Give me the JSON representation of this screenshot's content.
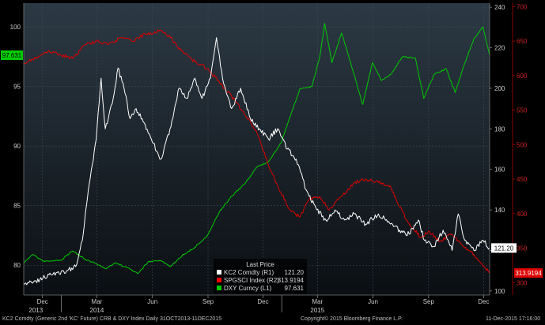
{
  "chart_data": {
    "type": "line",
    "title": "KC2 Comdty (Generic 2nd 'KC' Future) CRB & DXY Index  Daily 31OCT2013-11DEC2015",
    "x_axis": {
      "year_labels": [
        "2013",
        "2014",
        "2015"
      ],
      "month_labels": [
        "Dec",
        "Mar",
        "Jun",
        "Sep",
        "Dec",
        "Mar",
        "Jun",
        "Sep",
        "Dec"
      ],
      "month_dates": [
        "2013-12",
        "2014-03",
        "2014-06",
        "2014-09",
        "2014-12",
        "2015-03",
        "2015-06",
        "2015-09",
        "2015-12"
      ],
      "range": [
        "2013-10-31",
        "2015-12-11"
      ]
    },
    "y_axes": {
      "L1": {
        "ticks": [
          "80",
          "85",
          "90",
          "95",
          "100"
        ],
        "range": [
          77.5,
          102
        ]
      },
      "R1": {
        "ticks": [
          "100",
          "120",
          "140",
          "160",
          "180",
          "200",
          "220",
          "240"
        ],
        "range": [
          98,
          242
        ]
      },
      "R2": {
        "ticks": [
          "300",
          "350",
          "400",
          "450",
          "500",
          "550",
          "600",
          "650",
          "700"
        ],
        "range": [
          282,
          705
        ]
      }
    },
    "legend": {
      "title": "Last Price",
      "items": [
        {
          "label": "KC2 Comdty   (R1)",
          "value": "121.20",
          "color": "#ffffff"
        },
        {
          "label": "SPGSCI Index  (R2)",
          "value": "313.9194",
          "color": "#ff0000"
        },
        {
          "label": "DXY Curncy   (L1)",
          "value": "97.631",
          "color": "#00cc00"
        }
      ],
      "placement": "bottom-center"
    },
    "last_value_tags": [
      {
        "axis": "L1",
        "value": "97.631",
        "color": "#00cc00"
      },
      {
        "axis": "R1",
        "value": "121.20",
        "color": "#ffffff"
      },
      {
        "axis": "R2",
        "value": "313.9194",
        "color": "#ff0000"
      }
    ],
    "series": [
      {
        "name": "KC2 Comdty",
        "axis": "R1",
        "color": "#ffffff",
        "points": [
          [
            "2013-10-31",
            103
          ],
          [
            "2013-11-20",
            105
          ],
          [
            "2013-12-15",
            108
          ],
          [
            "2014-01-10",
            110
          ],
          [
            "2014-01-25",
            112
          ],
          [
            "2014-02-05",
            125
          ],
          [
            "2014-02-15",
            150
          ],
          [
            "2014-02-28",
            175
          ],
          [
            "2014-03-08",
            205
          ],
          [
            "2014-03-15",
            180
          ],
          [
            "2014-03-28",
            195
          ],
          [
            "2014-04-05",
            210
          ],
          [
            "2014-04-15",
            200
          ],
          [
            "2014-04-25",
            185
          ],
          [
            "2014-05-05",
            190
          ],
          [
            "2014-05-15",
            185
          ],
          [
            "2014-05-30",
            175
          ],
          [
            "2014-06-15",
            165
          ],
          [
            "2014-06-30",
            180
          ],
          [
            "2014-07-15",
            200
          ],
          [
            "2014-07-28",
            195
          ],
          [
            "2014-08-10",
            205
          ],
          [
            "2014-08-22",
            195
          ],
          [
            "2014-09-05",
            205
          ],
          [
            "2014-09-15",
            225
          ],
          [
            "2014-09-25",
            205
          ],
          [
            "2014-10-10",
            190
          ],
          [
            "2014-10-25",
            200
          ],
          [
            "2014-11-10",
            185
          ],
          [
            "2014-11-25",
            180
          ],
          [
            "2014-12-10",
            175
          ],
          [
            "2014-12-25",
            180
          ],
          [
            "2015-01-10",
            170
          ],
          [
            "2015-01-25",
            165
          ],
          [
            "2015-02-10",
            150
          ],
          [
            "2015-02-28",
            140
          ],
          [
            "2015-03-15",
            135
          ],
          [
            "2015-03-30",
            140
          ],
          [
            "2015-04-15",
            135
          ],
          [
            "2015-05-01",
            138
          ],
          [
            "2015-05-20",
            133
          ],
          [
            "2015-06-10",
            138
          ],
          [
            "2015-06-30",
            133
          ],
          [
            "2015-07-15",
            130
          ],
          [
            "2015-07-31",
            128
          ],
          [
            "2015-08-15",
            135
          ],
          [
            "2015-08-25",
            125
          ],
          [
            "2015-09-10",
            122
          ],
          [
            "2015-09-25",
            130
          ],
          [
            "2015-10-10",
            120
          ],
          [
            "2015-10-20",
            138
          ],
          [
            "2015-10-31",
            125
          ],
          [
            "2015-11-15",
            120
          ],
          [
            "2015-11-30",
            125
          ],
          [
            "2015-12-11",
            121.2
          ]
        ]
      },
      {
        "name": "SPGSCI Index",
        "axis": "R2",
        "color": "#dd0000",
        "points": [
          [
            "2013-10-31",
            618
          ],
          [
            "2013-11-20",
            625
          ],
          [
            "2013-12-10",
            635
          ],
          [
            "2013-12-31",
            630
          ],
          [
            "2014-01-20",
            625
          ],
          [
            "2014-02-10",
            645
          ],
          [
            "2014-03-01",
            650
          ],
          [
            "2014-03-20",
            645
          ],
          [
            "2014-04-10",
            655
          ],
          [
            "2014-05-01",
            650
          ],
          [
            "2014-05-20",
            660
          ],
          [
            "2014-06-15",
            665
          ],
          [
            "2014-07-01",
            655
          ],
          [
            "2014-07-20",
            635
          ],
          [
            "2014-08-10",
            620
          ],
          [
            "2014-09-01",
            610
          ],
          [
            "2014-09-20",
            590
          ],
          [
            "2014-10-10",
            570
          ],
          [
            "2014-10-31",
            545
          ],
          [
            "2014-11-20",
            520
          ],
          [
            "2014-12-10",
            470
          ],
          [
            "2014-12-31",
            430
          ],
          [
            "2015-01-15",
            405
          ],
          [
            "2015-01-31",
            395
          ],
          [
            "2015-02-15",
            420
          ],
          [
            "2015-03-05",
            425
          ],
          [
            "2015-03-20",
            405
          ],
          [
            "2015-04-10",
            425
          ],
          [
            "2015-05-01",
            445
          ],
          [
            "2015-05-20",
            450
          ],
          [
            "2015-06-10",
            445
          ],
          [
            "2015-06-30",
            440
          ],
          [
            "2015-07-15",
            410
          ],
          [
            "2015-07-31",
            385
          ],
          [
            "2015-08-20",
            365
          ],
          [
            "2015-09-01",
            375
          ],
          [
            "2015-09-20",
            360
          ],
          [
            "2015-10-10",
            370
          ],
          [
            "2015-10-25",
            355
          ],
          [
            "2015-11-10",
            345
          ],
          [
            "2015-11-25",
            330
          ],
          [
            "2015-12-11",
            313.9194
          ]
        ]
      },
      {
        "name": "DXY Curncy",
        "axis": "L1",
        "color": "#00cc00",
        "points": [
          [
            "2013-10-31",
            80.2
          ],
          [
            "2013-11-15",
            80.9
          ],
          [
            "2013-12-05",
            80.3
          ],
          [
            "2013-12-31",
            80.4
          ],
          [
            "2014-01-20",
            81.2
          ],
          [
            "2014-02-10",
            80.5
          ],
          [
            "2014-03-01",
            80.1
          ],
          [
            "2014-03-15",
            79.7
          ],
          [
            "2014-04-01",
            80.2
          ],
          [
            "2014-04-20",
            79.8
          ],
          [
            "2014-05-08",
            79.3
          ],
          [
            "2014-05-25",
            80.3
          ],
          [
            "2014-06-15",
            80.4
          ],
          [
            "2014-07-01",
            79.9
          ],
          [
            "2014-07-20",
            80.8
          ],
          [
            "2014-08-10",
            81.5
          ],
          [
            "2014-08-31",
            82.5
          ],
          [
            "2014-09-20",
            84.5
          ],
          [
            "2014-10-10",
            85.8
          ],
          [
            "2014-10-31",
            86.8
          ],
          [
            "2014-11-20",
            88.2
          ],
          [
            "2014-12-10",
            88.7
          ],
          [
            "2014-12-31",
            90.3
          ],
          [
            "2015-01-15",
            92.5
          ],
          [
            "2015-01-31",
            94.8
          ],
          [
            "2015-02-20",
            95.0
          ],
          [
            "2015-03-05",
            97.5
          ],
          [
            "2015-03-13",
            100.3
          ],
          [
            "2015-03-25",
            97.0
          ],
          [
            "2015-04-10",
            99.5
          ],
          [
            "2015-04-25",
            97.0
          ],
          [
            "2015-05-15",
            93.5
          ],
          [
            "2015-05-31",
            97.0
          ],
          [
            "2015-06-15",
            95.5
          ],
          [
            "2015-06-30",
            96.0
          ],
          [
            "2015-07-20",
            97.5
          ],
          [
            "2015-08-10",
            97.4
          ],
          [
            "2015-08-24",
            94.0
          ],
          [
            "2015-09-10",
            96.0
          ],
          [
            "2015-09-30",
            96.5
          ],
          [
            "2015-10-15",
            94.5
          ],
          [
            "2015-10-31",
            97.0
          ],
          [
            "2015-11-15",
            99.0
          ],
          [
            "2015-11-30",
            100.0
          ],
          [
            "2015-12-11",
            97.631
          ]
        ]
      }
    ]
  },
  "footer": {
    "title": "KC2 Comdty (Generic 2nd 'KC' Future) CRB & DXY Index  Daily 31OCT2013-11DEC2015",
    "copyright": "Copyright© 2015 Bloomberg Finance L.P.",
    "timestamp": "11-Dec-2015 17:16:00"
  },
  "colors": {
    "background": "#000000",
    "plot_top": "#2a3640",
    "plot_bottom": "#0a0e12",
    "grid": "#3e4a55"
  }
}
